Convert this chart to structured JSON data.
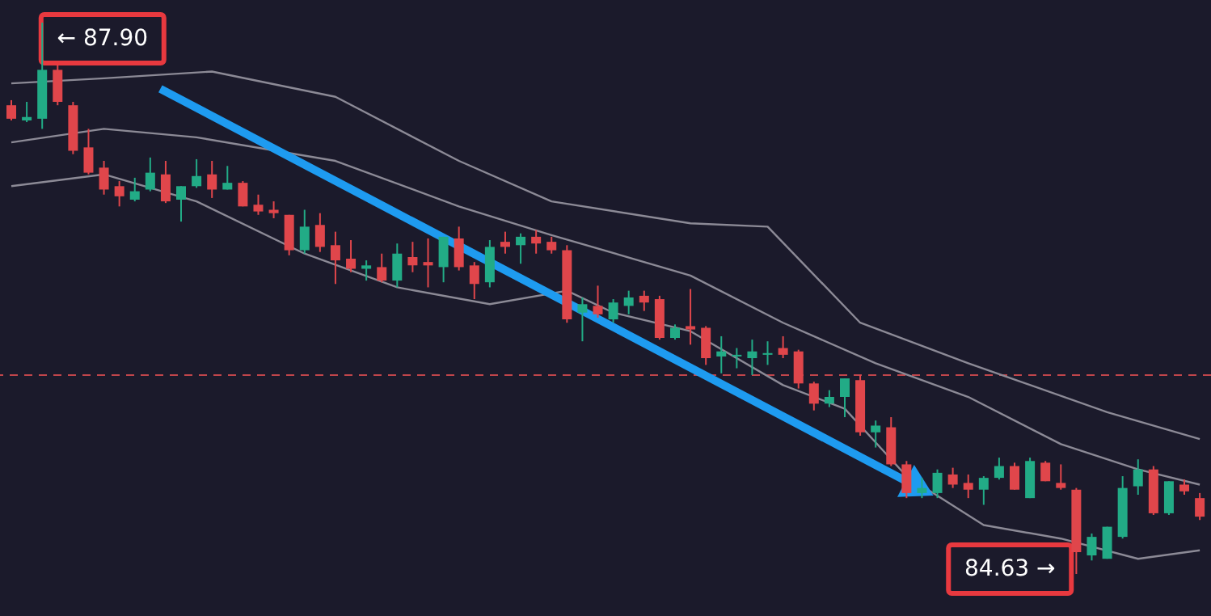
{
  "chart_data": {
    "type": "candlestick",
    "tick_labels": false,
    "categories": [
      null,
      null,
      null,
      null,
      null,
      null,
      null,
      null,
      null,
      null,
      null,
      null,
      null,
      null,
      null,
      null,
      null,
      null,
      null,
      null,
      null,
      null,
      null,
      null,
      null,
      null,
      null,
      null,
      null,
      null,
      null,
      null,
      null,
      null,
      null,
      null,
      null,
      null,
      null,
      null,
      null,
      null,
      null,
      null,
      null,
      null,
      null,
      null,
      null,
      null,
      null,
      null,
      null,
      null,
      null,
      null,
      null,
      null,
      null,
      null,
      null,
      null,
      null,
      null,
      null,
      null,
      null,
      null,
      null,
      null,
      null,
      null,
      null,
      null,
      null,
      null,
      null,
      null
    ],
    "ohlc": [
      [
        87.41,
        87.44,
        87.32,
        87.33
      ],
      [
        87.32,
        87.43,
        87.31,
        87.34
      ],
      [
        87.33,
        87.9,
        87.27,
        87.62
      ],
      [
        87.62,
        87.65,
        87.41,
        87.43
      ],
      [
        87.41,
        87.43,
        87.12,
        87.14
      ],
      [
        87.16,
        87.27,
        87.0,
        87.01
      ],
      [
        87.04,
        87.08,
        86.88,
        86.91
      ],
      [
        86.93,
        86.96,
        86.81,
        86.87
      ],
      [
        86.85,
        86.98,
        86.84,
        86.9
      ],
      [
        86.91,
        87.1,
        86.9,
        87.01
      ],
      [
        87.0,
        87.08,
        86.83,
        86.84
      ],
      [
        86.85,
        86.93,
        86.72,
        86.93
      ],
      [
        86.93,
        87.09,
        86.92,
        86.99
      ],
      [
        87.0,
        87.08,
        86.86,
        86.91
      ],
      [
        86.91,
        87.05,
        86.91,
        86.95
      ],
      [
        86.95,
        86.96,
        86.81,
        86.81
      ],
      [
        86.82,
        86.88,
        86.76,
        86.78
      ],
      [
        86.79,
        86.84,
        86.74,
        86.77
      ],
      [
        86.76,
        86.76,
        86.52,
        86.55
      ],
      [
        86.55,
        86.79,
        86.53,
        86.69
      ],
      [
        86.7,
        86.77,
        86.54,
        86.57
      ],
      [
        86.58,
        86.66,
        86.35,
        86.49
      ],
      [
        86.5,
        86.61,
        86.42,
        86.44
      ],
      [
        86.44,
        86.49,
        86.37,
        86.46
      ],
      [
        86.45,
        86.53,
        86.36,
        86.37
      ],
      [
        86.37,
        86.59,
        86.33,
        86.53
      ],
      [
        86.51,
        86.6,
        86.42,
        86.46
      ],
      [
        86.48,
        86.62,
        86.33,
        86.46
      ],
      [
        86.45,
        86.63,
        86.36,
        86.63
      ],
      [
        86.62,
        86.69,
        86.43,
        86.45
      ],
      [
        86.46,
        86.48,
        86.26,
        86.35
      ],
      [
        86.36,
        86.61,
        86.33,
        86.57
      ],
      [
        86.6,
        86.66,
        86.53,
        86.57
      ],
      [
        86.58,
        86.65,
        86.47,
        86.63
      ],
      [
        86.63,
        86.67,
        86.53,
        86.59
      ],
      [
        86.6,
        86.63,
        86.53,
        86.55
      ],
      [
        86.55,
        86.58,
        86.12,
        86.14
      ],
      [
        86.18,
        86.27,
        86.01,
        86.23
      ],
      [
        86.22,
        86.34,
        86.15,
        86.17
      ],
      [
        86.14,
        86.26,
        86.12,
        86.24
      ],
      [
        86.22,
        86.31,
        86.17,
        86.27
      ],
      [
        86.28,
        86.31,
        86.19,
        86.24
      ],
      [
        86.26,
        86.28,
        86.02,
        86.03
      ],
      [
        86.03,
        86.11,
        86.02,
        86.09
      ],
      [
        86.1,
        86.32,
        85.99,
        86.08
      ],
      [
        86.09,
        86.1,
        85.87,
        85.91
      ],
      [
        85.92,
        86.04,
        85.82,
        85.95
      ],
      [
        85.92,
        85.97,
        85.85,
        85.93
      ],
      [
        85.91,
        86.02,
        85.81,
        85.95
      ],
      [
        85.93,
        86.01,
        85.87,
        85.94
      ],
      [
        85.97,
        86.04,
        85.91,
        85.93
      ],
      [
        85.95,
        85.96,
        85.73,
        85.76
      ],
      [
        85.76,
        85.77,
        85.6,
        85.64
      ],
      [
        85.64,
        85.72,
        85.62,
        85.68
      ],
      [
        85.68,
        85.79,
        85.56,
        85.79
      ],
      [
        85.78,
        85.81,
        85.45,
        85.47
      ],
      [
        85.47,
        85.54,
        85.38,
        85.51
      ],
      [
        85.5,
        85.56,
        85.27,
        85.28
      ],
      [
        85.28,
        85.3,
        85.08,
        85.11
      ],
      [
        85.11,
        85.2,
        85.08,
        85.14
      ],
      [
        85.11,
        85.25,
        85.08,
        85.23
      ],
      [
        85.22,
        85.26,
        85.14,
        85.16
      ],
      [
        85.17,
        85.22,
        85.08,
        85.13
      ],
      [
        85.13,
        85.21,
        85.04,
        85.2
      ],
      [
        85.2,
        85.32,
        85.19,
        85.27
      ],
      [
        85.27,
        85.29,
        85.13,
        85.13
      ],
      [
        85.08,
        85.32,
        85.08,
        85.3
      ],
      [
        85.29,
        85.3,
        85.18,
        85.18
      ],
      [
        85.17,
        85.28,
        85.13,
        85.14
      ],
      [
        85.13,
        85.14,
        84.63,
        84.76
      ],
      [
        84.74,
        84.87,
        84.71,
        84.85
      ],
      [
        84.72,
        84.91,
        84.72,
        84.91
      ],
      [
        84.85,
        85.21,
        84.84,
        85.14
      ],
      [
        85.15,
        85.31,
        85.1,
        85.25
      ],
      [
        85.25,
        85.27,
        84.98,
        84.99
      ],
      [
        84.99,
        85.18,
        84.98,
        85.18
      ],
      [
        85.16,
        85.19,
        85.1,
        85.12
      ],
      [
        85.08,
        85.11,
        84.95,
        84.97
      ]
    ],
    "colors": [
      "#e0464b",
      "#22ab86",
      "#22ab86",
      "#e0464b",
      "#e0464b",
      "#e0464b",
      "#e0464b",
      "#e0464b",
      "#22ab86",
      "#22ab86",
      "#e0464b",
      "#22ab86",
      "#22ab86",
      "#e0464b",
      "#22ab86",
      "#e0464b",
      "#e0464b",
      "#e0464b",
      "#e0464b",
      "#22ab86",
      "#e0464b",
      "#e0464b",
      "#e0464b",
      "#22ab86",
      "#e0464b",
      "#22ab86",
      "#e0464b",
      "#e0464b",
      "#22ab86",
      "#e0464b",
      "#e0464b",
      "#22ab86",
      "#e0464b",
      "#22ab86",
      "#e0464b",
      "#e0464b",
      "#e0464b",
      "#22ab86",
      "#e0464b",
      "#22ab86",
      "#22ab86",
      "#e0464b",
      "#e0464b",
      "#22ab86",
      "#e0464b",
      "#e0464b",
      "#22ab86",
      "#22ab86",
      "#22ab86",
      "#22ab86",
      "#e0464b",
      "#e0464b",
      "#e0464b",
      "#22ab86",
      "#22ab86",
      "#e0464b",
      "#22ab86",
      "#e0464b",
      "#e0464b",
      "#22ab86",
      "#22ab86",
      "#e0464b",
      "#e0464b",
      "#22ab86",
      "#22ab86",
      "#e0464b",
      "#22ab86",
      "#e0464b",
      "#e0464b",
      "#e0464b",
      "#22ab86",
      "#22ab86",
      "#22ab86",
      "#22ab86",
      "#e0464b",
      "#22ab86",
      "#e0464b",
      "#e0464b"
    ],
    "series": [
      {
        "type": "line",
        "color": "#8c8a96",
        "values": [
          87.54,
          null,
          null,
          null,
          null,
          null,
          87.57,
          null,
          null,
          null,
          null,
          null,
          null,
          87.61,
          null,
          null,
          null,
          null,
          null,
          null,
          null,
          87.46,
          null,
          null,
          null,
          null,
          null,
          null,
          null,
          87.08,
          null,
          null,
          null,
          null,
          null,
          86.84,
          null,
          null,
          null,
          null,
          null,
          null,
          null,
          null,
          86.71,
          null,
          null,
          null,
          null,
          86.69,
          null,
          null,
          null,
          null,
          null,
          86.12,
          null,
          null,
          null,
          null,
          null,
          null,
          85.88,
          null,
          null,
          null,
          null,
          null,
          null,
          null,
          null,
          85.59,
          null,
          null,
          null,
          null,
          null,
          85.43
        ]
      },
      {
        "type": "line",
        "color": "#8c8a96",
        "values": [
          87.19,
          null,
          null,
          null,
          null,
          null,
          87.27,
          null,
          null,
          null,
          null,
          null,
          87.22,
          null,
          null,
          null,
          null,
          null,
          null,
          null,
          null,
          87.08,
          null,
          null,
          null,
          null,
          null,
          null,
          null,
          86.81,
          null,
          null,
          null,
          null,
          null,
          86.64,
          null,
          null,
          null,
          null,
          null,
          null,
          null,
          null,
          86.4,
          null,
          null,
          null,
          null,
          null,
          86.12,
          null,
          null,
          null,
          null,
          null,
          85.88,
          null,
          null,
          null,
          null,
          null,
          85.68,
          null,
          null,
          null,
          null,
          null,
          85.4,
          null,
          null,
          null,
          null,
          85.25,
          null,
          null,
          null,
          85.16
        ]
      },
      {
        "type": "line",
        "color": "#8c8a96",
        "values": [
          86.93,
          null,
          null,
          null,
          null,
          null,
          87.0,
          null,
          null,
          null,
          null,
          null,
          86.84,
          null,
          null,
          null,
          null,
          null,
          null,
          86.53,
          null,
          null,
          null,
          null,
          null,
          86.33,
          null,
          null,
          null,
          null,
          null,
          86.23,
          null,
          null,
          null,
          null,
          86.31,
          null,
          null,
          86.18,
          null,
          null,
          null,
          null,
          86.07,
          null,
          null,
          null,
          null,
          null,
          85.75,
          null,
          null,
          null,
          85.61,
          null,
          null,
          null,
          85.21,
          null,
          null,
          null,
          null,
          84.92,
          null,
          null,
          null,
          null,
          84.84,
          null,
          null,
          null,
          null,
          84.72,
          null,
          null,
          null,
          84.77
        ]
      }
    ],
    "ref_lines": [
      {
        "axis": "y",
        "value": 85.81,
        "color": "#c0454b",
        "line_style": "dashed"
      }
    ],
    "annotations": [
      "← 87.90",
      "84.63 →"
    ]
  }
}
